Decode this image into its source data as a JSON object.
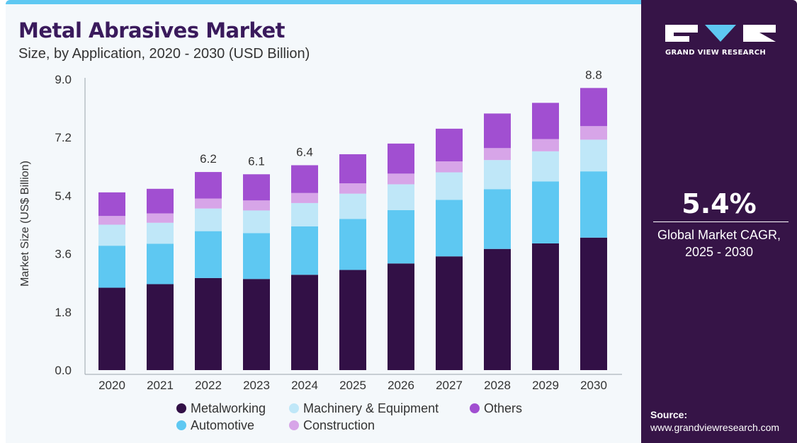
{
  "header": {
    "title": "Metal Abrasives Market",
    "subtitle": "Size, by Application, 2020 - 2030 (USD Billion)"
  },
  "brand": {
    "name": "GRAND VIEW RESEARCH",
    "logo_letters": "GVR"
  },
  "cagr": {
    "value": "5.4%",
    "label_line1": "Global Market CAGR,",
    "label_line2": "2025 - 2030"
  },
  "source": {
    "label": "Source:",
    "url": "www.grandviewresearch.com"
  },
  "colors": {
    "panel_bg": "#f4f8fb",
    "sidebar_bg": "#361447",
    "title": "#3a1a5c",
    "accent": "#5ec8f2"
  },
  "chart_data": {
    "type": "bar",
    "stacked": true,
    "title": "Metal Abrasives Market",
    "subtitle": "Size, by Application, 2020 - 2030 (USD Billion)",
    "xlabel": "",
    "ylabel": "Market Size (US$ Billion)",
    "ylim": [
      0,
      9
    ],
    "yticks": [
      "0.0",
      "1.8",
      "3.6",
      "5.4",
      "7.2",
      "9.0"
    ],
    "categories": [
      "2020",
      "2021",
      "2022",
      "2023",
      "2024",
      "2025",
      "2026",
      "2027",
      "2028",
      "2029",
      "2030"
    ],
    "series": [
      {
        "name": "Metalworking",
        "color": "#321046",
        "values": [
          2.55,
          2.66,
          2.85,
          2.82,
          2.95,
          3.1,
          3.3,
          3.52,
          3.75,
          3.92,
          4.1
        ]
      },
      {
        "name": "Automotive",
        "color": "#5ec8f2",
        "values": [
          1.3,
          1.25,
          1.45,
          1.42,
          1.5,
          1.58,
          1.65,
          1.75,
          1.85,
          1.92,
          2.05
        ]
      },
      {
        "name": "Machinery & Equipment",
        "color": "#bfe7f8",
        "values": [
          0.65,
          0.65,
          0.7,
          0.7,
          0.72,
          0.78,
          0.8,
          0.85,
          0.9,
          0.93,
          0.98
        ]
      },
      {
        "name": "Construction",
        "color": "#d7a5e8",
        "values": [
          0.27,
          0.29,
          0.31,
          0.31,
          0.31,
          0.32,
          0.33,
          0.34,
          0.37,
          0.38,
          0.42
        ]
      },
      {
        "name": "Others",
        "color": "#a14fd1",
        "values": [
          0.73,
          0.76,
          0.82,
          0.81,
          0.86,
          0.9,
          0.93,
          1.01,
          1.07,
          1.12,
          1.18
        ]
      }
    ],
    "data_labels": [
      {
        "category": "2022",
        "text": "6.2"
      },
      {
        "category": "2023",
        "text": "6.1"
      },
      {
        "category": "2024",
        "text": "6.4"
      },
      {
        "category": "2030",
        "text": "8.8"
      }
    ],
    "legend": {
      "placement": "bottom",
      "order": [
        "Metalworking",
        "Machinery & Equipment",
        "Others",
        "Automotive",
        "Construction"
      ]
    },
    "grid": false
  }
}
